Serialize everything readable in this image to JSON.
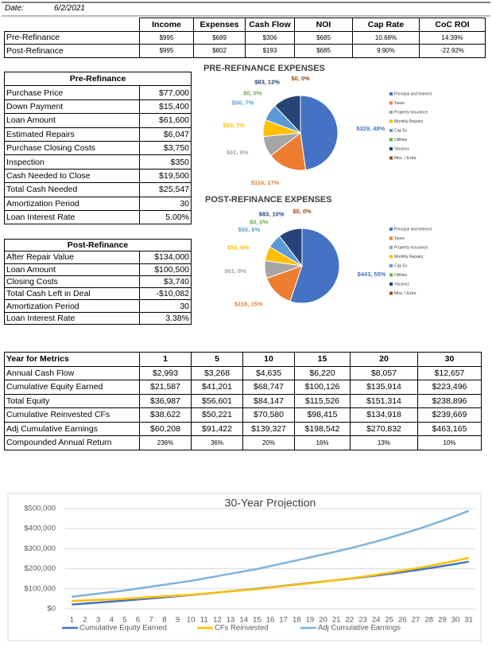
{
  "header": {
    "date_label": "Date:",
    "date": "6/2/2021"
  },
  "summary": {
    "columns": [
      "Income",
      "Expenses",
      "Cash Flow",
      "NOI",
      "Cap Rate",
      "CoC ROI"
    ],
    "rows": [
      {
        "label": "Pre-Refinance",
        "cells": [
          "$995",
          "$689",
          "$306",
          "$685",
          "10.68%",
          "14.39%"
        ]
      },
      {
        "label": "Post-Refinance",
        "cells": [
          "$995",
          "$802",
          "$193",
          "$685",
          "9.90%",
          "-22.92%"
        ]
      }
    ]
  },
  "pre_refinance": {
    "title": "Pre-Refinance",
    "rows": [
      [
        "Purchase Price",
        "$77,000"
      ],
      [
        "Down Payment",
        "$15,400"
      ],
      [
        "Loan Amount",
        "$61,600"
      ],
      [
        "Estimated Repairs",
        "$6,047"
      ],
      [
        "Purchase Closing Costs",
        "$3,750"
      ],
      [
        "Inspection",
        "$350"
      ],
      [
        "Cash Needed to Close",
        "$19,500"
      ],
      [
        "Total Cash Needed",
        "$25,547"
      ],
      [
        "Amortization Period",
        "30"
      ],
      [
        "Loan Interest Rate",
        "5.00%"
      ]
    ]
  },
  "post_refinance": {
    "title": "Post-Refinance",
    "rows": [
      [
        "After Repair Value",
        "$134,000"
      ],
      [
        "Loan Amount",
        "$100,500"
      ],
      [
        "Closing Costs",
        "$3,740"
      ],
      [
        "Total Cash Left in Deal",
        "-$10,082"
      ],
      [
        "Amortization Period",
        "30"
      ],
      [
        "Loan Interest Rate",
        "3.38%"
      ]
    ]
  },
  "metrics": {
    "columns": [
      "Year for Metrics",
      "1",
      "5",
      "10",
      "15",
      "20",
      "30"
    ],
    "rows": [
      [
        "Annual Cash Flow",
        "$2,993",
        "$3,268",
        "$4,635",
        "$6,220",
        "$8,057",
        "$12,657"
      ],
      [
        "Cumulative Equity Earned",
        "$21,587",
        "$41,201",
        "$68,747",
        "$100,126",
        "$135,914",
        "$223,496"
      ],
      [
        "Total Equity",
        "$36,987",
        "$56,601",
        "$84,147",
        "$115,526",
        "$151,314",
        "$238,896"
      ],
      [
        "Cumulative Reinvested CFs",
        "$38,622",
        "$50,221",
        "$70,580",
        "$98,415",
        "$134,918",
        "$239,669"
      ],
      [
        "Adj Cumulative Earnings",
        "$60,208",
        "$91,422",
        "$139,327",
        "$198,542",
        "$270,832",
        "$463,165"
      ],
      [
        "Compounded Annual Return",
        "236%",
        "36%",
        "20%",
        "16%",
        "13%",
        "10%"
      ]
    ]
  },
  "chart_data": [
    {
      "type": "pie",
      "title": "PRE-REFINANCE EXPENSES",
      "categories": [
        "Principal and Interest",
        "Taxes",
        "Property Insurance",
        "Monthly Repairs",
        "Cap Ex",
        "Utilities",
        "Vacancy",
        "Misc. / Extra"
      ],
      "values": [
        329,
        116,
        61,
        50,
        50,
        0,
        83,
        0
      ],
      "value_labels": [
        "$329, 48%",
        "$116, 17%",
        "$61, 9%",
        "$50, 7%",
        "$50, 7%",
        "$0, 0%",
        "$83, 12%",
        "$0, 0%"
      ],
      "colors": [
        "#4472c4",
        "#ed7d31",
        "#a5a5a5",
        "#ffc000",
        "#5b9bd5",
        "#70ad47",
        "#264478",
        "#9e480e"
      ]
    },
    {
      "type": "pie",
      "title": "POST-REFINANCE EXPENSES",
      "categories": [
        "Principal and Interest",
        "Taxes",
        "Property Insurance",
        "Monthly Repairs",
        "Cap Ex",
        "Utilities",
        "Vacancy",
        "Misc. / Extra"
      ],
      "values": [
        443,
        116,
        61,
        50,
        50,
        0,
        83,
        0
      ],
      "value_labels": [
        "$443, 55%",
        "$116, 15%",
        "$61, 8%",
        "$50, 6%",
        "$50, 6%",
        "$0, 0%",
        "$83, 10%",
        "$0, 0%"
      ],
      "colors": [
        "#4472c4",
        "#ed7d31",
        "#a5a5a5",
        "#ffc000",
        "#5b9bd5",
        "#70ad47",
        "#264478",
        "#9e480e"
      ]
    },
    {
      "type": "line",
      "title": "30-Year Projection",
      "x": [
        1,
        2,
        3,
        4,
        5,
        6,
        7,
        8,
        9,
        10,
        11,
        12,
        13,
        14,
        15,
        16,
        17,
        18,
        19,
        20,
        21,
        22,
        23,
        24,
        25,
        26,
        27,
        28,
        29,
        30,
        31
      ],
      "xlim": [
        0.5,
        31.5
      ],
      "xticks": [
        1,
        2,
        3,
        4,
        5,
        6,
        7,
        8,
        9,
        10,
        11,
        12,
        13,
        14,
        15,
        16,
        17,
        18,
        19,
        20,
        21,
        22,
        23,
        24,
        25,
        26,
        27,
        28,
        29,
        30,
        31
      ],
      "ylim": [
        0,
        500000
      ],
      "yticks": [
        {
          "value": 0,
          "label": "$0"
        },
        {
          "value": 100000,
          "label": "$100,000"
        },
        {
          "value": 200000,
          "label": "$200,000"
        },
        {
          "value": 300000,
          "label": "$300,000"
        },
        {
          "value": 400000,
          "label": "$400,000"
        },
        {
          "value": 500000,
          "label": "$500,000"
        }
      ],
      "grid": true,
      "legend": "bottom",
      "series": [
        {
          "name": "Cumulative Equity Earned",
          "color": "#4472c4",
          "values": [
            21587,
            26491,
            31394,
            36298,
            41201,
            46710,
            52219,
            57729,
            63238,
            68747,
            75023,
            81299,
            87574,
            93850,
            100126,
            107284,
            114441,
            121599,
            128756,
            135914,
            142846,
            150130,
            157787,
            165834,
            174291,
            183180,
            192522,
            202340,
            212660,
            223496,
            234900
          ]
        },
        {
          "name": "CFs Reinvested",
          "color": "#ffc000",
          "values": [
            38622,
            41522,
            44421,
            47321,
            50221,
            54293,
            58365,
            62436,
            66508,
            70580,
            76147,
            81714,
            87281,
            92848,
            98415,
            105716,
            113016,
            120317,
            127617,
            134918,
            142892,
            151337,
            160281,
            169753,
            179786,
            190411,
            201664,
            213582,
            226205,
            239669,
            253800
          ]
        },
        {
          "name": "Adj Cumulative Earnings",
          "color": "#7fb2dc",
          "values": [
            60208,
            68012,
            75815,
            83619,
            91422,
            101003,
            110584,
            120165,
            129746,
            139327,
            151170,
            163013,
            174856,
            186699,
            198542,
            213000,
            227458,
            241916,
            256374,
            270832,
            285755,
            301500,
            318112,
            335640,
            354133,
            373645,
            394233,
            415955,
            438874,
            463165,
            488700
          ]
        }
      ]
    }
  ]
}
